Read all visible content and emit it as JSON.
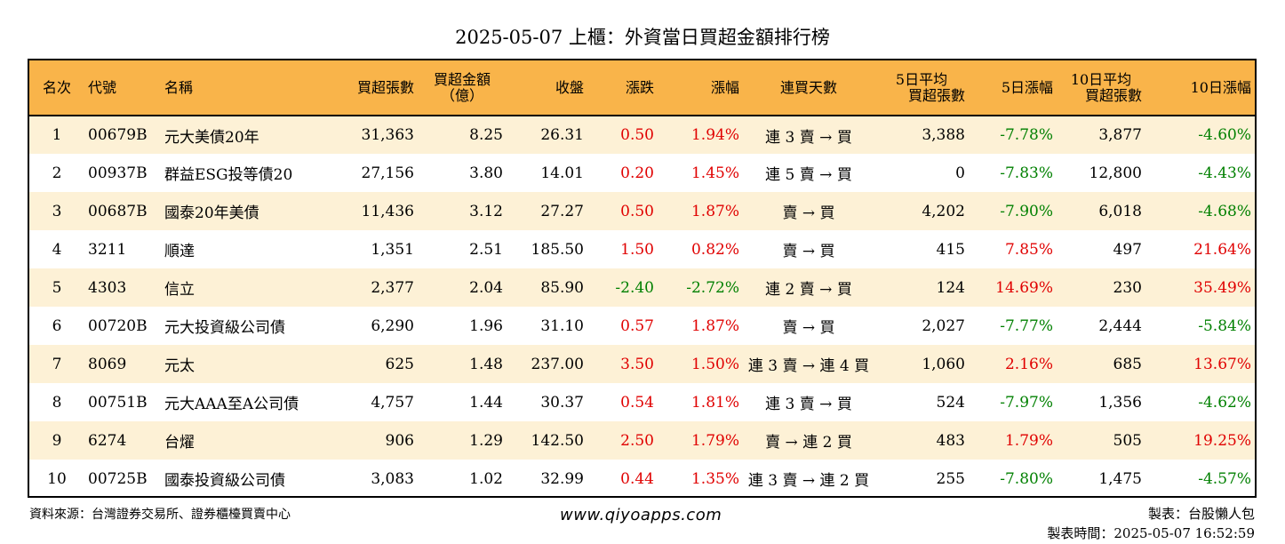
{
  "title": "2025-05-07 上櫃：外資當日買超金額排行榜",
  "headers": {
    "rank": "名次",
    "code": "代號",
    "name": "名稱",
    "net_buy_lots": "買超張數",
    "net_buy_amount_1": "買超金額",
    "net_buy_amount_2": "（億）",
    "close": "收盤",
    "change": "漲跌",
    "change_pct": "漲幅",
    "streak": "連買天數",
    "avg5_1": "5日平均",
    "avg5_2": "買超張數",
    "pct5": "5日漲幅",
    "avg10_1": "10日平均",
    "avg10_2": "買超張數",
    "pct10": "10日漲幅"
  },
  "rows": [
    {
      "rank": "1",
      "code": "00679B",
      "name": "元大美債20年",
      "lots": "31,363",
      "amount": "8.25",
      "close": "26.31",
      "change": "0.50",
      "pct": "1.94%",
      "streak": "連 3 賣 → 買",
      "avg5": "3,388",
      "pct5": "-7.78%",
      "avg10": "3,877",
      "pct10": "-4.60%",
      "dir": "up",
      "dir5": "down",
      "dir10": "down"
    },
    {
      "rank": "2",
      "code": "00937B",
      "name": "群益ESG投等債20",
      "lots": "27,156",
      "amount": "3.80",
      "close": "14.01",
      "change": "0.20",
      "pct": "1.45%",
      "streak": "連 5 賣 → 買",
      "avg5": "0",
      "pct5": "-7.83%",
      "avg10": "12,800",
      "pct10": "-4.43%",
      "dir": "up",
      "dir5": "down",
      "dir10": "down"
    },
    {
      "rank": "3",
      "code": "00687B",
      "name": "國泰20年美債",
      "lots": "11,436",
      "amount": "3.12",
      "close": "27.27",
      "change": "0.50",
      "pct": "1.87%",
      "streak": "賣 → 買",
      "avg5": "4,202",
      "pct5": "-7.90%",
      "avg10": "6,018",
      "pct10": "-4.68%",
      "dir": "up",
      "dir5": "down",
      "dir10": "down"
    },
    {
      "rank": "4",
      "code": "3211",
      "name": "順達",
      "lots": "1,351",
      "amount": "2.51",
      "close": "185.50",
      "change": "1.50",
      "pct": "0.82%",
      "streak": "賣 → 買",
      "avg5": "415",
      "pct5": "7.85%",
      "avg10": "497",
      "pct10": "21.64%",
      "dir": "up",
      "dir5": "up",
      "dir10": "up"
    },
    {
      "rank": "5",
      "code": "4303",
      "name": "信立",
      "lots": "2,377",
      "amount": "2.04",
      "close": "85.90",
      "change": "-2.40",
      "pct": "-2.72%",
      "streak": "連 2 賣 → 買",
      "avg5": "124",
      "pct5": "14.69%",
      "avg10": "230",
      "pct10": "35.49%",
      "dir": "down",
      "dir5": "up",
      "dir10": "up"
    },
    {
      "rank": "6",
      "code": "00720B",
      "name": "元大投資級公司債",
      "lots": "6,290",
      "amount": "1.96",
      "close": "31.10",
      "change": "0.57",
      "pct": "1.87%",
      "streak": "賣 → 買",
      "avg5": "2,027",
      "pct5": "-7.77%",
      "avg10": "2,444",
      "pct10": "-5.84%",
      "dir": "up",
      "dir5": "down",
      "dir10": "down"
    },
    {
      "rank": "7",
      "code": "8069",
      "name": "元太",
      "lots": "625",
      "amount": "1.48",
      "close": "237.00",
      "change": "3.50",
      "pct": "1.50%",
      "streak": "連 3 賣 → 連 4 買",
      "avg5": "1,060",
      "pct5": "2.16%",
      "avg10": "685",
      "pct10": "13.67%",
      "dir": "up",
      "dir5": "up",
      "dir10": "up"
    },
    {
      "rank": "8",
      "code": "00751B",
      "name": "元大AAA至A公司債",
      "lots": "4,757",
      "amount": "1.44",
      "close": "30.37",
      "change": "0.54",
      "pct": "1.81%",
      "streak": "連 3 賣 → 買",
      "avg5": "524",
      "pct5": "-7.97%",
      "avg10": "1,356",
      "pct10": "-4.62%",
      "dir": "up",
      "dir5": "down",
      "dir10": "down"
    },
    {
      "rank": "9",
      "code": "6274",
      "name": "台燿",
      "lots": "906",
      "amount": "1.29",
      "close": "142.50",
      "change": "2.50",
      "pct": "1.79%",
      "streak": "賣 → 連 2 買",
      "avg5": "483",
      "pct5": "1.79%",
      "avg10": "505",
      "pct10": "19.25%",
      "dir": "up",
      "dir5": "up",
      "dir10": "up"
    },
    {
      "rank": "10",
      "code": "00725B",
      "name": "國泰投資級公司債",
      "lots": "3,083",
      "amount": "1.02",
      "close": "32.99",
      "change": "0.44",
      "pct": "1.35%",
      "streak": "連 3 賣 → 連 2 買",
      "avg5": "255",
      "pct5": "-7.80%",
      "avg10": "1,475",
      "pct10": "-4.57%",
      "dir": "up",
      "dir5": "down",
      "dir10": "down"
    }
  ],
  "footer": {
    "source": "資料來源：台灣證券交易所、證券櫃檯買賣中心",
    "site": "www.qiyoapps.com",
    "maker": "製表：台股懶人包",
    "made_time": "製表時間：2025-05-07 16:52:59"
  },
  "colors": {
    "header_bg": "#f9b44a",
    "stripe_bg": "#fdf1d6",
    "up": "#e00000",
    "down": "#008000"
  }
}
